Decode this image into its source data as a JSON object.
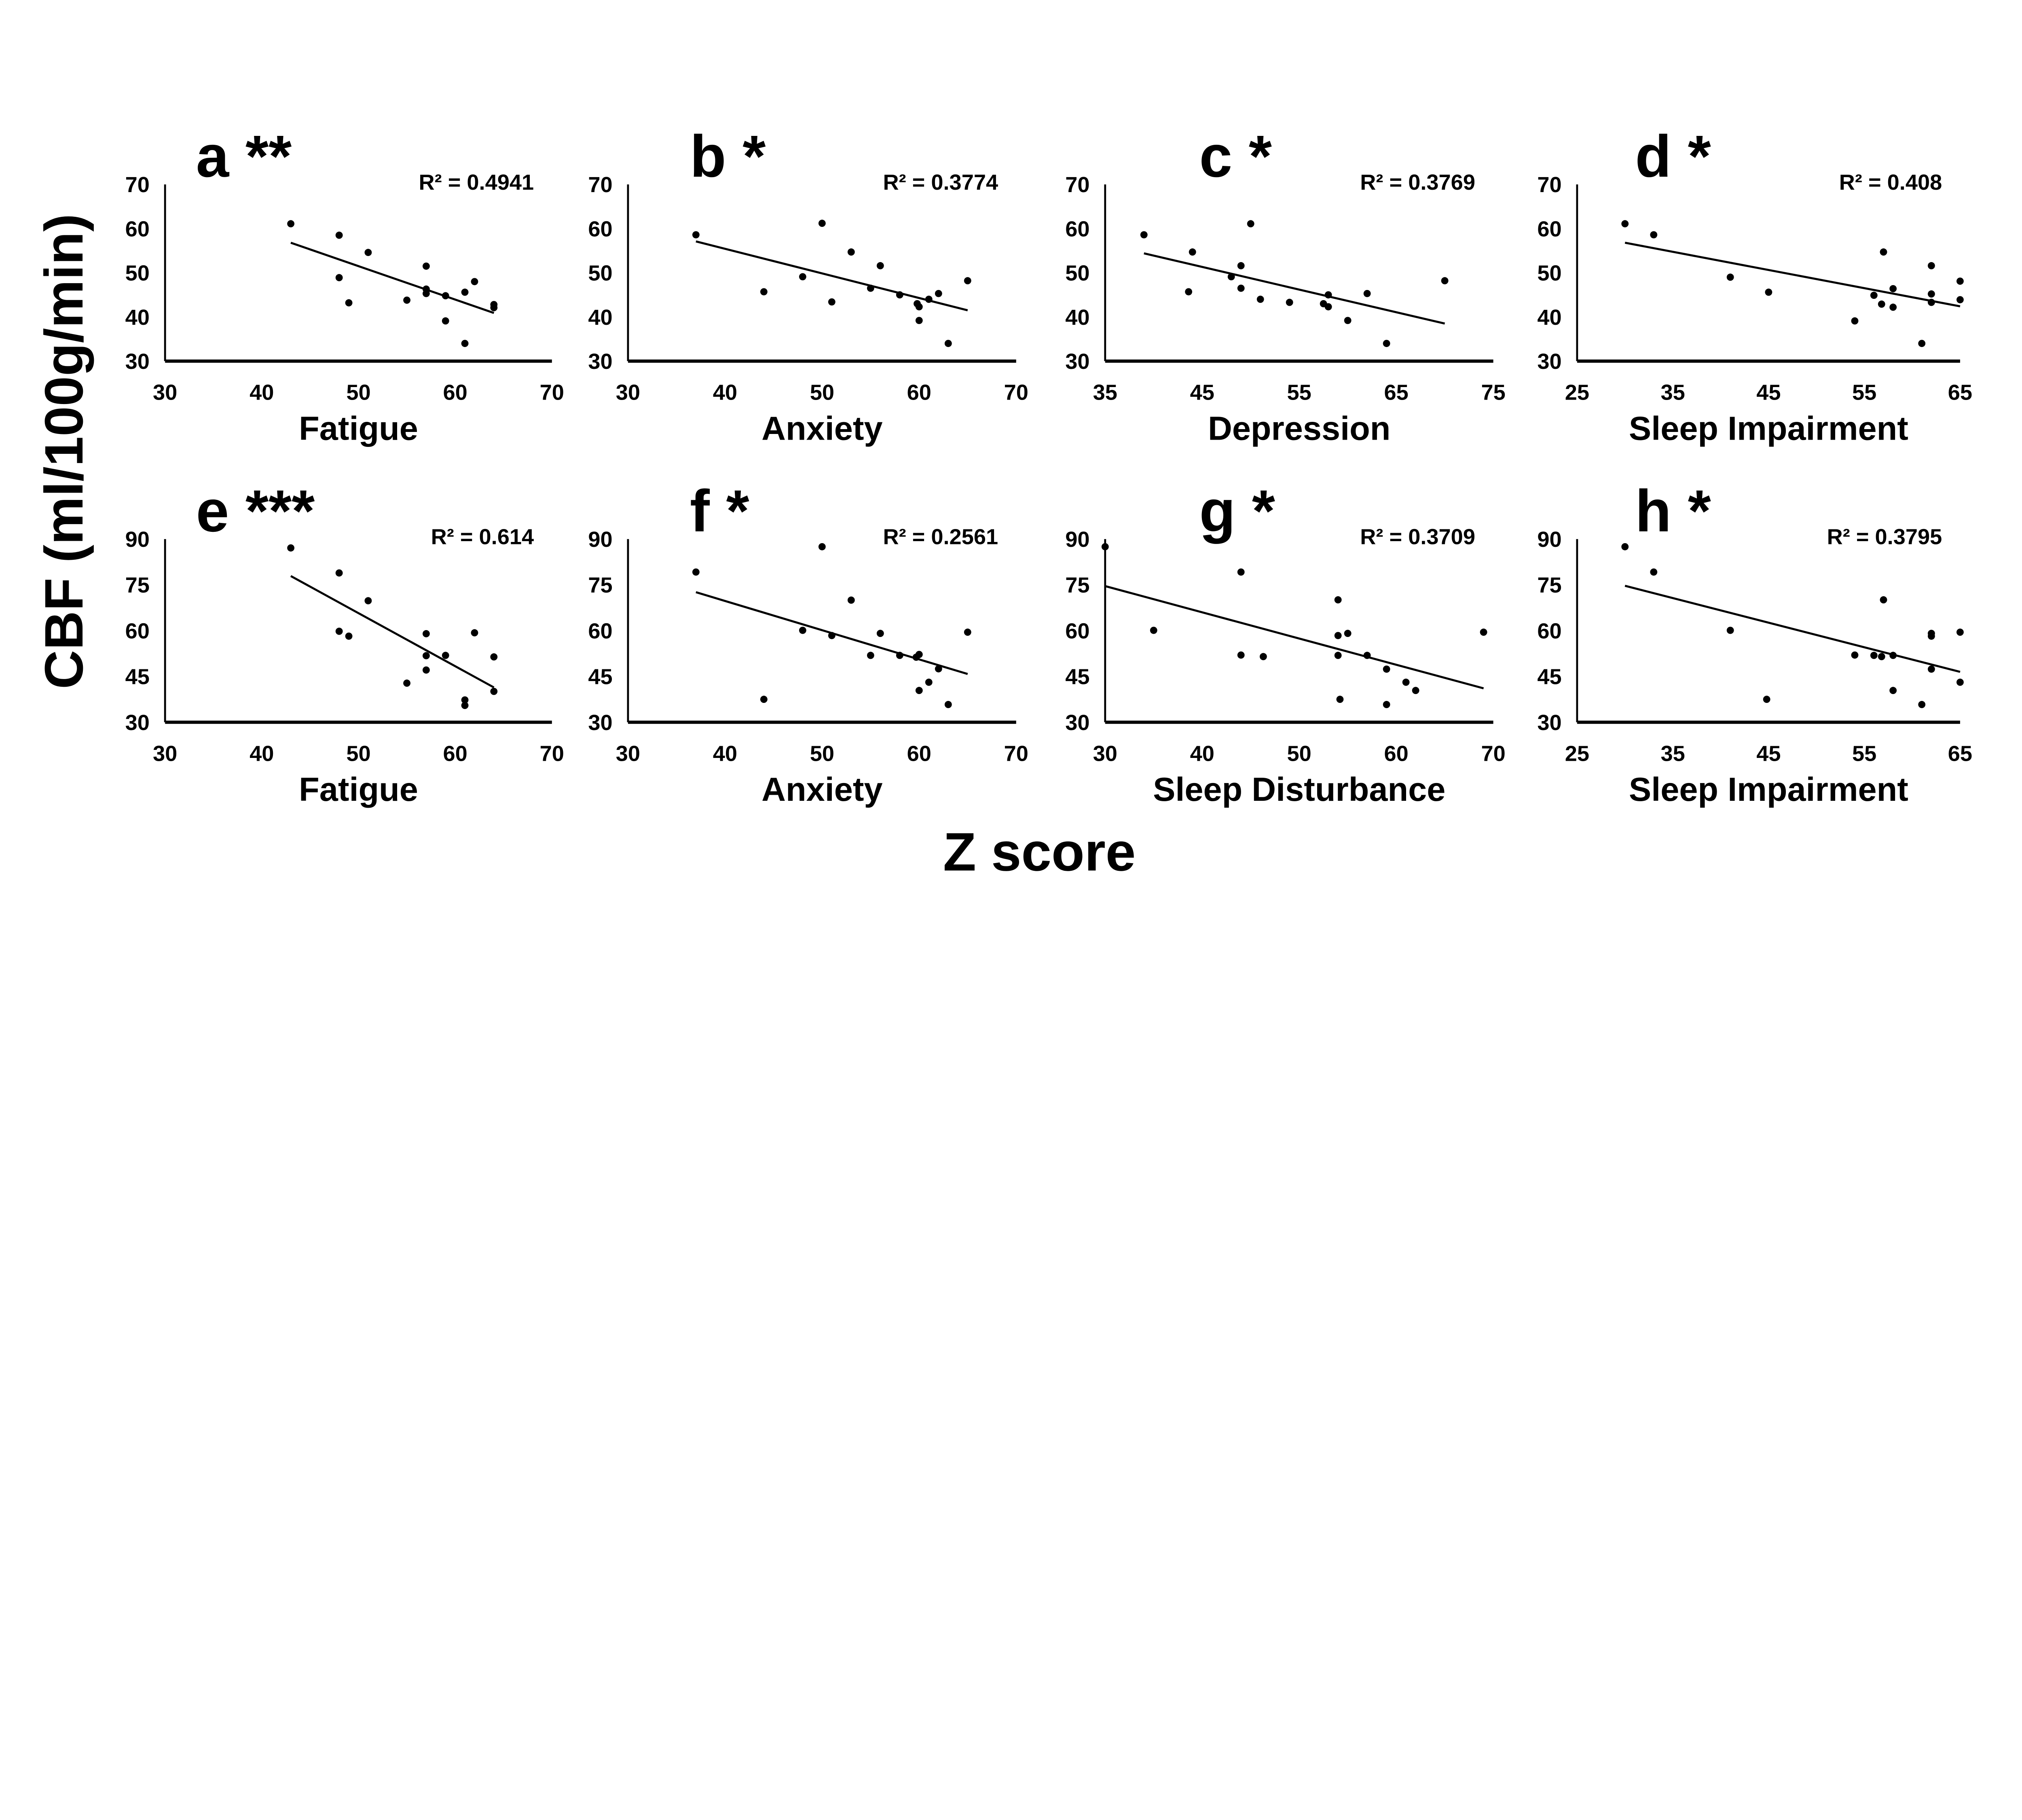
{
  "figure": {
    "y_label": "CBF (ml/100g/min)",
    "x_label": "Z score",
    "colors": {
      "ink": "#000000",
      "background": "#ffffff"
    }
  },
  "chart_data": [
    {
      "type": "scatter",
      "panel": "a",
      "significance": "**",
      "title": "a **",
      "xlabel": "Fatigue",
      "r2_label": "R² = 0.4941",
      "xlim": [
        30,
        70
      ],
      "ylim": [
        30,
        70
      ],
      "xticks": [
        "30",
        "40",
        "50",
        "60",
        "70"
      ],
      "yticks": [
        "30",
        "40",
        "50",
        "60",
        "70"
      ],
      "trendline": [
        [
          43,
          56.8
        ],
        [
          64,
          40.9
        ]
      ],
      "points": [
        [
          43,
          61.1
        ],
        [
          48,
          58.5
        ],
        [
          51,
          54.6
        ],
        [
          57,
          51.5
        ],
        [
          48,
          48.9
        ],
        [
          62,
          48.0
        ],
        [
          57,
          46.3
        ],
        [
          57,
          45.3
        ],
        [
          59,
          44.8
        ],
        [
          61,
          45.6
        ],
        [
          49,
          43.2
        ],
        [
          55,
          43.8
        ],
        [
          64,
          42.8
        ],
        [
          64,
          42.1
        ],
        [
          59,
          39.1
        ],
        [
          61,
          34.0
        ]
      ]
    },
    {
      "type": "scatter",
      "panel": "b",
      "significance": "*",
      "title": "b *",
      "xlabel": "Anxiety",
      "r2_label": "R² = 0.3774",
      "xlim": [
        30,
        70
      ],
      "ylim": [
        30,
        70
      ],
      "xticks": [
        "30",
        "40",
        "50",
        "60",
        "70"
      ],
      "yticks": [
        "30",
        "40",
        "50",
        "60",
        "70"
      ],
      "trendline": [
        [
          37,
          57.1
        ],
        [
          65,
          41.5
        ]
      ],
      "points": [
        [
          37,
          58.6
        ],
        [
          50,
          61.2
        ],
        [
          53,
          54.7
        ],
        [
          56,
          51.6
        ],
        [
          48,
          49.1
        ],
        [
          44,
          45.7
        ],
        [
          55,
          46.5
        ],
        [
          51,
          43.4
        ],
        [
          58,
          45.0
        ],
        [
          61,
          44.0
        ],
        [
          62,
          45.3
        ],
        [
          65,
          48.2
        ],
        [
          59.8,
          43.0
        ],
        [
          60,
          42.3
        ],
        [
          60,
          39.2
        ],
        [
          63,
          34.0
        ]
      ]
    },
    {
      "type": "scatter",
      "panel": "c",
      "significance": "*",
      "title": "c *",
      "xlabel": "Depression",
      "r2_label": "R² = 0.3769",
      "xlim": [
        35,
        75
      ],
      "ylim": [
        30,
        70
      ],
      "xticks": [
        "35",
        "45",
        "55",
        "65",
        "75"
      ],
      "yticks": [
        "30",
        "40",
        "50",
        "60",
        "70"
      ],
      "trendline": [
        [
          39,
          54.4
        ],
        [
          70,
          38.5
        ]
      ],
      "points": [
        [
          39,
          58.6
        ],
        [
          44,
          54.7
        ],
        [
          50,
          61.1
        ],
        [
          49,
          51.6
        ],
        [
          48,
          49.1
        ],
        [
          43.6,
          45.7
        ],
        [
          49,
          46.5
        ],
        [
          51,
          44.0
        ],
        [
          54,
          43.3
        ],
        [
          58,
          45.0
        ],
        [
          57.5,
          43.0
        ],
        [
          58,
          42.3
        ],
        [
          62,
          45.3
        ],
        [
          70,
          48.2
        ],
        [
          60,
          39.2
        ],
        [
          64,
          34.0
        ]
      ]
    },
    {
      "type": "scatter",
      "panel": "d",
      "significance": "*",
      "title": "d *",
      "xlabel": "Sleep Impairment",
      "r2_label": "R² = 0.408",
      "xlim": [
        25,
        65
      ],
      "ylim": [
        30,
        70
      ],
      "xticks": [
        "25",
        "35",
        "45",
        "55",
        "65"
      ],
      "yticks": [
        "30",
        "40",
        "50",
        "60",
        "70"
      ],
      "trendline": [
        [
          30,
          56.8
        ],
        [
          65,
          42.4
        ]
      ],
      "points": [
        [
          30,
          61.1
        ],
        [
          33,
          58.6
        ],
        [
          41,
          49.0
        ],
        [
          45,
          45.6
        ],
        [
          57,
          54.7
        ],
        [
          62,
          51.6
        ],
        [
          65,
          48.1
        ],
        [
          58,
          46.4
        ],
        [
          56,
          44.9
        ],
        [
          62,
          45.2
        ],
        [
          65,
          43.9
        ],
        [
          56.8,
          42.9
        ],
        [
          58,
          42.2
        ],
        [
          62,
          43.3
        ],
        [
          54,
          39.1
        ],
        [
          61,
          34.0
        ]
      ]
    },
    {
      "type": "scatter",
      "panel": "e",
      "significance": "***",
      "title": "e ***",
      "xlabel": "Fatigue",
      "r2_label": "R² = 0.614",
      "xlim": [
        30,
        70
      ],
      "ylim": [
        30,
        90
      ],
      "xticks": [
        "30",
        "40",
        "50",
        "60",
        "70"
      ],
      "yticks": [
        "30",
        "45",
        "60",
        "75",
        "90"
      ],
      "trendline": [
        [
          43,
          77.9
        ],
        [
          64,
          41.4
        ]
      ],
      "points": [
        [
          43,
          87.1
        ],
        [
          48,
          78.9
        ],
        [
          51,
          69.8
        ],
        [
          48,
          59.8
        ],
        [
          49,
          58.2
        ],
        [
          57,
          59.0
        ],
        [
          62,
          59.3
        ],
        [
          57,
          51.8
        ],
        [
          59,
          51.9
        ],
        [
          64,
          51.4
        ],
        [
          57,
          47.1
        ],
        [
          55,
          42.8
        ],
        [
          64,
          40.1
        ],
        [
          61,
          37.3
        ],
        [
          61,
          35.5
        ]
      ]
    },
    {
      "type": "scatter",
      "panel": "f",
      "significance": "*",
      "title": "f *",
      "xlabel": "Anxiety",
      "r2_label": "R² = 0.2561",
      "xlim": [
        30,
        70
      ],
      "ylim": [
        30,
        90
      ],
      "xticks": [
        "30",
        "40",
        "50",
        "60",
        "70"
      ],
      "yticks": [
        "30",
        "45",
        "60",
        "75",
        "90"
      ],
      "trendline": [
        [
          37,
          72.6
        ],
        [
          65,
          45.8
        ]
      ],
      "points": [
        [
          37,
          79.2
        ],
        [
          50,
          87.5
        ],
        [
          53,
          70.0
        ],
        [
          48,
          60.1
        ],
        [
          51,
          58.4
        ],
        [
          56,
          59.1
        ],
        [
          65,
          59.5
        ],
        [
          55,
          51.9
        ],
        [
          58,
          51.9
        ],
        [
          60,
          52.2
        ],
        [
          59.7,
          51.3
        ],
        [
          62,
          47.5
        ],
        [
          61,
          43.1
        ],
        [
          60,
          40.4
        ],
        [
          44,
          37.5
        ],
        [
          63,
          35.8
        ]
      ]
    },
    {
      "type": "scatter",
      "panel": "g",
      "significance": "*",
      "title": "g *",
      "xlabel": "Sleep Disturbance",
      "r2_label": "R² = 0.3709",
      "xlim": [
        30,
        70
      ],
      "ylim": [
        30,
        90
      ],
      "xticks": [
        "30",
        "40",
        "50",
        "60",
        "70"
      ],
      "yticks": [
        "30",
        "45",
        "60",
        "75",
        "90"
      ],
      "trendline": [
        [
          30,
          74.6
        ],
        [
          69,
          41.1
        ]
      ],
      "points": [
        [
          30,
          87.5
        ],
        [
          44,
          79.2
        ],
        [
          54,
          70.1
        ],
        [
          35,
          60.1
        ],
        [
          54,
          58.4
        ],
        [
          55,
          59.1
        ],
        [
          69,
          59.5
        ],
        [
          44,
          52.0
        ],
        [
          46.3,
          51.5
        ],
        [
          54,
          51.9
        ],
        [
          57,
          51.9
        ],
        [
          59,
          47.4
        ],
        [
          61,
          43.1
        ],
        [
          62,
          40.4
        ],
        [
          54.2,
          37.5
        ],
        [
          59,
          35.8
        ]
      ]
    },
    {
      "type": "scatter",
      "panel": "h",
      "significance": "*",
      "title": "h *",
      "xlabel": "Sleep Impairment",
      "r2_label": "R² = 0.3795",
      "xlim": [
        25,
        65
      ],
      "ylim": [
        30,
        90
      ],
      "xticks": [
        "25",
        "35",
        "45",
        "55",
        "65"
      ],
      "yticks": [
        "30",
        "45",
        "60",
        "75",
        "90"
      ],
      "trendline": [
        [
          30,
          74.7
        ],
        [
          65,
          46.5
        ]
      ],
      "points": [
        [
          30,
          87.5
        ],
        [
          33,
          79.2
        ],
        [
          57,
          70.1
        ],
        [
          41,
          60.1
        ],
        [
          62,
          59.1
        ],
        [
          62,
          58.2
        ],
        [
          65,
          59.5
        ],
        [
          54,
          52.0
        ],
        [
          56,
          51.9
        ],
        [
          56.8,
          51.5
        ],
        [
          58,
          51.9
        ],
        [
          62,
          47.4
        ],
        [
          65,
          43.1
        ],
        [
          58,
          40.4
        ],
        [
          44.8,
          37.5
        ],
        [
          61,
          35.8
        ]
      ]
    }
  ]
}
